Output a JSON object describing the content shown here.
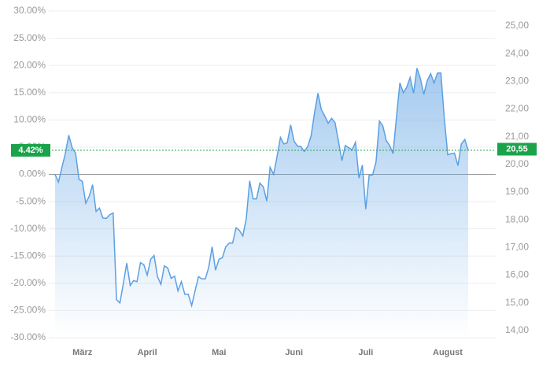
{
  "chart_data": {
    "type": "area",
    "categories": [
      null,
      null,
      null,
      null,
      null,
      null,
      null,
      null,
      "März",
      null,
      null,
      null,
      null,
      null,
      null,
      null,
      null,
      null,
      null,
      null,
      null,
      null,
      null,
      null,
      null,
      null,
      null,
      "April",
      null,
      null,
      null,
      null,
      null,
      null,
      null,
      null,
      null,
      null,
      null,
      null,
      null,
      null,
      null,
      null,
      null,
      null,
      null,
      null,
      "Mai",
      null,
      null,
      null,
      null,
      null,
      null,
      null,
      null,
      null,
      null,
      null,
      null,
      null,
      null,
      null,
      null,
      null,
      null,
      null,
      null,
      null,
      "Juni",
      null,
      null,
      null,
      null,
      null,
      null,
      null,
      null,
      null,
      null,
      null,
      null,
      null,
      null,
      null,
      null,
      null,
      null,
      null,
      null,
      "Juli",
      null,
      null,
      null,
      null,
      null,
      null,
      null,
      null,
      null,
      null,
      null,
      null,
      null,
      null,
      null,
      null,
      null,
      null,
      null,
      null,
      null,
      null,
      null,
      "August",
      null,
      null,
      null,
      null,
      null,
      null
    ],
    "series": [
      {
        "color": "#5ba0e3",
        "values": [
          0,
          -1.4,
          1.3,
          3.8,
          7.2,
          4.9,
          3.9,
          -0.9,
          -1.3,
          -5.3,
          -4.0,
          -1.9,
          -6.8,
          -6.2,
          -8.0,
          -8.1,
          -7.4,
          -7.1,
          -23.0,
          -23.6,
          -20.0,
          -16.3,
          -20.4,
          -19.5,
          -19.7,
          -16.2,
          -16.6,
          -18.5,
          -15.6,
          -14.9,
          -18.8,
          -20.2,
          -16.8,
          -17.2,
          -19.1,
          -18.7,
          -21.4,
          -19.7,
          -22.0,
          -22.0,
          -24.1,
          -21.4,
          -18.8,
          -19.2,
          -19.2,
          -17.1,
          -13.3,
          -17.6,
          -15.6,
          -15.3,
          -13.3,
          -12.6,
          -12.6,
          -9.8,
          -10.3,
          -11.3,
          -8.1,
          -1.2,
          -4.5,
          -4.5,
          -1.6,
          -2.3,
          -4.9,
          1.3,
          0,
          3.2,
          6.8,
          5.6,
          5.8,
          9.1,
          6.1,
          5.2,
          5.1,
          4.2,
          5.1,
          7.1,
          11.4,
          14.9,
          11.9,
          10.7,
          9.4,
          10.3,
          9.5,
          6.1,
          2.5,
          5.3,
          4.9,
          4.5,
          5.9,
          -0.7,
          1.7,
          -6.4,
          -0.1,
          -0.1,
          2.3,
          9.8,
          8.9,
          6.2,
          5.3,
          3.8,
          10.6,
          16.8,
          15.0,
          16.0,
          17.8,
          14.9,
          19.5,
          17.6,
          14.7,
          17.2,
          18.5,
          16.8,
          18.6,
          18.6,
          10.4,
          3.6,
          3.8,
          3.9,
          1.6,
          5.6,
          6.4,
          4.42
        ]
      }
    ],
    "ylim": [
      -30,
      30
    ],
    "yticks": [
      {
        "value": 30,
        "label": "30.00%"
      },
      {
        "value": 25,
        "label": "25.00%"
      },
      {
        "value": 20,
        "label": "20.00%"
      },
      {
        "value": 15,
        "label": "15.00%"
      },
      {
        "value": 10,
        "label": "10.00%"
      },
      {
        "value": 5,
        "label": "5.00%"
      },
      {
        "value": 0,
        "label": "0.00%"
      },
      {
        "value": -5,
        "label": "-5.00%"
      },
      {
        "value": -10,
        "label": "-10.00%"
      },
      {
        "value": -15,
        "label": "-15.00%"
      },
      {
        "value": -20,
        "label": "-20.00%"
      },
      {
        "value": -25,
        "label": "-25.00%"
      },
      {
        "value": -30,
        "label": "-30.00%"
      }
    ],
    "y2lim": [
      13.74,
      25.54
    ],
    "y2ticks": [
      {
        "value": 25,
        "label": "25,00"
      },
      {
        "value": 24,
        "label": "24,00"
      },
      {
        "value": 23,
        "label": "23,00"
      },
      {
        "value": 22,
        "label": "22,00"
      },
      {
        "value": 21,
        "label": "21,00"
      },
      {
        "value": 20,
        "label": "20,00"
      },
      {
        "value": 19,
        "label": "19,00"
      },
      {
        "value": 18,
        "label": "18,00"
      },
      {
        "value": 17,
        "label": "17,00"
      },
      {
        "value": 16,
        "label": "16,00"
      },
      {
        "value": 15,
        "label": "15,00"
      },
      {
        "value": 14,
        "label": "14,00"
      }
    ],
    "last_value": {
      "value": 4.42,
      "label": "4.42%"
    },
    "last_price": {
      "value": 20.55,
      "label": "20,55"
    },
    "marker_color": "#1aa34a",
    "grid": true
  }
}
